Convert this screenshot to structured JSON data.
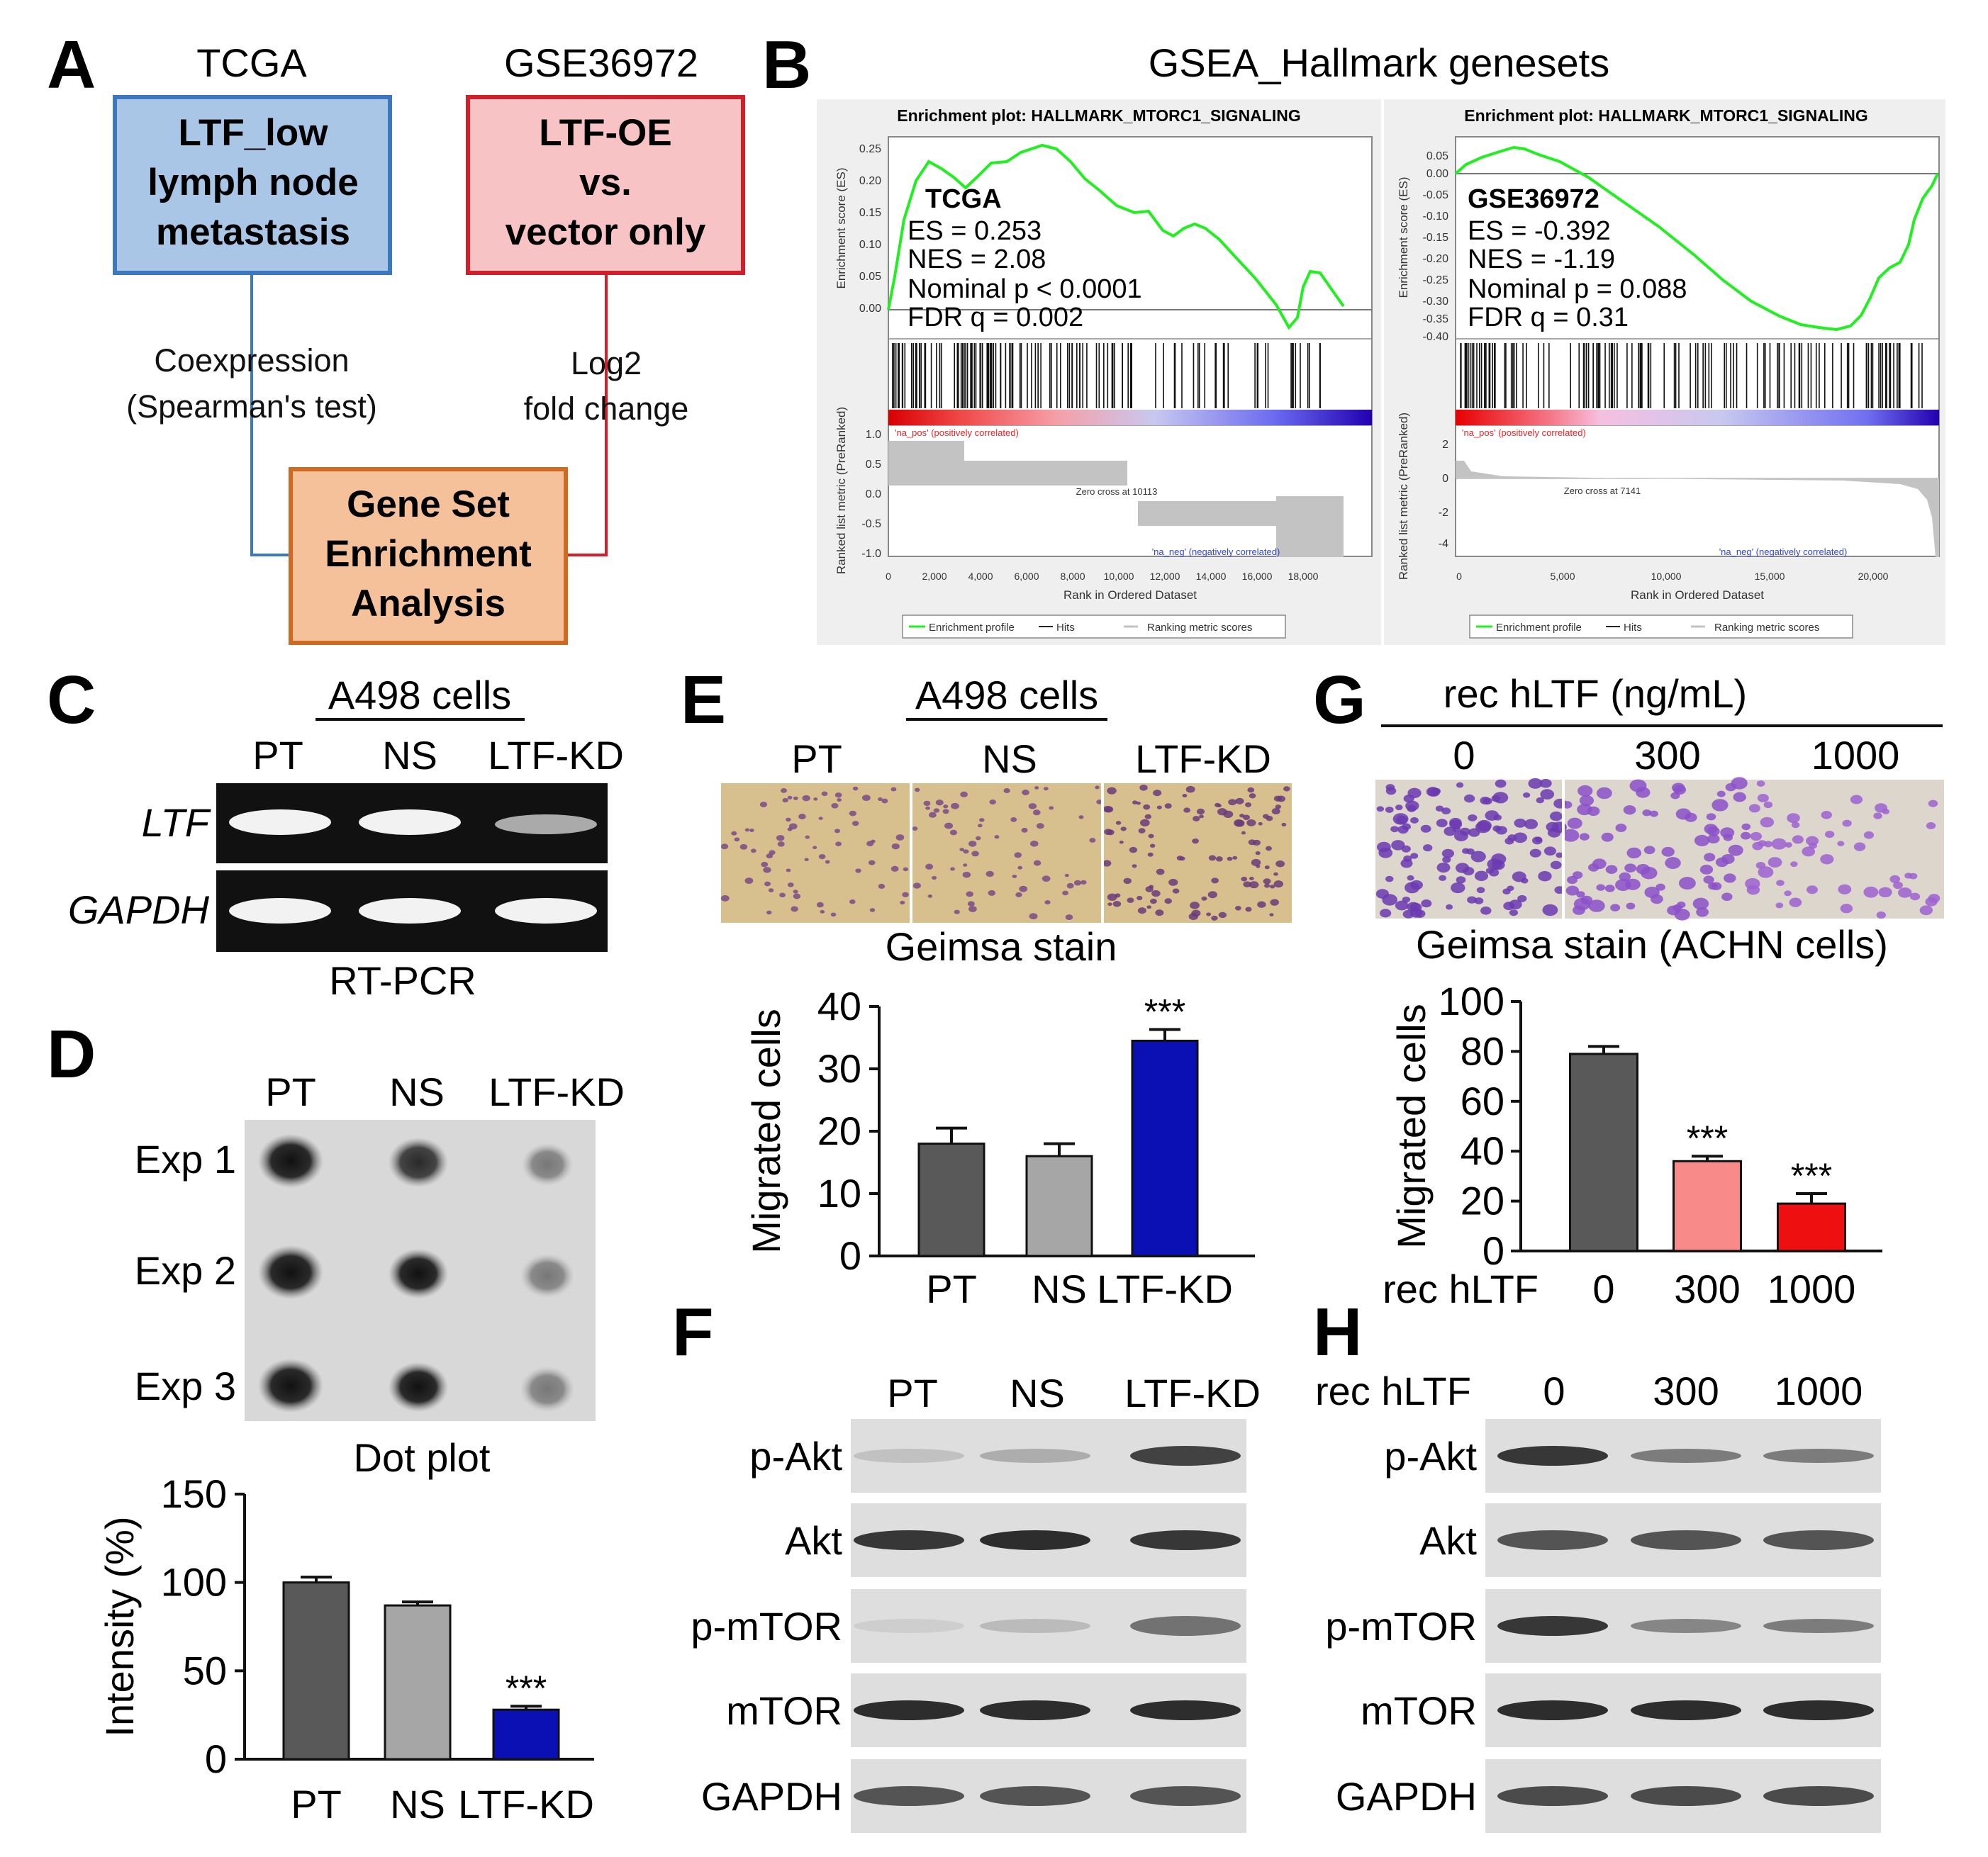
{
  "panels": {
    "A": {
      "letter": "A",
      "tcga_title": "TCGA",
      "gse_title": "GSE36972",
      "box1": [
        "LTF_low",
        "lymph node",
        "metastasis"
      ],
      "box2": [
        "LTF-OE",
        "vs.",
        "vector only"
      ],
      "box3": [
        "Gene Set",
        "Enrichment",
        "Analysis"
      ],
      "coexp": [
        "Coexpression",
        "(Spearman's test)"
      ],
      "log2": [
        "Log2",
        "fold change"
      ],
      "colors": {
        "blue_fill": "#a9c6e6",
        "blue_edge": "#3b78c0",
        "red_fill": "#f7c3c4",
        "red_edge": "#d0202a",
        "orange_fill": "#f4c19b",
        "orange_edge": "#cf6a22"
      }
    },
    "B": {
      "letter": "B",
      "title": "GSEA_Hallmark genesets",
      "plots": [
        {
          "header": "Enrichment plot: HALLMARK_MTORC1_SIGNALING",
          "dataset": "TCGA",
          "stats": [
            "ES = 0.253",
            "NES = 2.08",
            "Nominal p < 0.0001",
            "FDR q = 0.002"
          ],
          "es_yticks": [
            "0.25",
            "0.20",
            "0.15",
            "0.10",
            "0.05",
            "0.00"
          ],
          "metric_yticks": [
            "1.0",
            "0.5",
            "0.0",
            "-0.5",
            "-1.0"
          ],
          "xticks": [
            "0",
            "2,000",
            "4,000",
            "6,000",
            "8,000",
            "10,000",
            "12,000",
            "14,000",
            "16,000",
            "18,000"
          ],
          "pos_label": "'na_pos' (positively correlated)",
          "neg_label": "'na_neg' (negatively correlated)",
          "zero_cross": "Zero cross at 10113",
          "legend": [
            "Enrichment profile",
            "Hits",
            "Ranking metric scores"
          ]
        },
        {
          "header": "Enrichment plot: HALLMARK_MTORC1_SIGNALING",
          "dataset": "GSE36972",
          "stats": [
            "ES = -0.392",
            "NES = -1.19",
            "Nominal p = 0.088",
            "FDR q = 0.31"
          ],
          "es_yticks": [
            "0.05",
            "0.00",
            "-0.05",
            "-0.10",
            "-0.15",
            "-0.20",
            "-0.25",
            "-0.30",
            "-0.35",
            "-0.40"
          ],
          "metric_yticks": [
            "2",
            "0",
            "-2",
            "-4"
          ],
          "xticks": [
            "0",
            "5,000",
            "10,000",
            "15,000",
            "20,000"
          ],
          "pos_label": "'na_pos' (positively correlated)",
          "neg_label": "'na_neg' (negatively correlated)",
          "zero_cross": "Zero cross at 7141",
          "legend": [
            "Enrichment profile",
            "Hits",
            "Ranking metric scores"
          ]
        }
      ],
      "es_ylabel": "Enrichment score (ES)",
      "metric_ylabel": "Ranked list metric (PreRanked)",
      "xlabel": "Rank in Ordered Dataset"
    },
    "C": {
      "letter": "C",
      "title": "A498 cells",
      "lanes": [
        "PT",
        "NS",
        "LTF-KD"
      ],
      "rows": [
        "LTF",
        "GAPDH"
      ],
      "caption": "RT-PCR"
    },
    "D": {
      "letter": "D",
      "lanes": [
        "PT",
        "NS",
        "LTF-KD"
      ],
      "rows": [
        "Exp 1",
        "Exp 2",
        "Exp 3"
      ],
      "caption": "Dot plot",
      "significance": "***"
    },
    "E": {
      "letter": "E",
      "title": "A498 cells",
      "lanes": [
        "PT",
        "NS",
        "LTF-KD"
      ],
      "caption": "Geimsa stain",
      "significance": "***"
    },
    "F": {
      "letter": "F",
      "lanes": [
        "PT",
        "NS",
        "LTF-KD"
      ],
      "rows": [
        "p-Akt",
        "Akt",
        "p-mTOR",
        "mTOR",
        "GAPDH"
      ]
    },
    "G": {
      "letter": "G",
      "title": "rec hLTF (ng/mL)",
      "lanes": [
        "0",
        "300",
        "1000"
      ],
      "caption": "Geimsa stain (ACHN cells)",
      "significance": "***",
      "x_prefix": "rec hLTF"
    },
    "H": {
      "letter": "H",
      "prefix": "rec hLTF",
      "lanes": [
        "0",
        "300",
        "1000"
      ],
      "rows": [
        "p-Akt",
        "Akt",
        "p-mTOR",
        "mTOR",
        "GAPDH"
      ]
    }
  },
  "chart_data": [
    {
      "id": "D",
      "type": "bar",
      "categories": [
        "PT",
        "NS",
        "LTF-KD"
      ],
      "values": [
        100,
        87,
        28
      ],
      "errors": [
        3,
        2,
        2
      ],
      "ylabel": "Intensity (%)",
      "ylim": [
        0,
        150
      ],
      "yticks": [
        0,
        50,
        100,
        150
      ],
      "colors": [
        "#595959",
        "#a6a6a6",
        "#0a10b4"
      ]
    },
    {
      "id": "E",
      "type": "bar",
      "categories": [
        "PT",
        "NS",
        "LTF-KD"
      ],
      "values": [
        18,
        16,
        34.5
      ],
      "errors": [
        2.5,
        2,
        1.8
      ],
      "ylabel": "Migrated cells",
      "ylim": [
        0,
        40
      ],
      "yticks": [
        0,
        10,
        20,
        30,
        40
      ],
      "colors": [
        "#595959",
        "#a6a6a6",
        "#0a10b4"
      ]
    },
    {
      "id": "G",
      "type": "bar",
      "categories": [
        "0",
        "300",
        "1000"
      ],
      "values": [
        79,
        36,
        19
      ],
      "errors": [
        3,
        2,
        4
      ],
      "ylabel": "Migrated cells",
      "ylim": [
        0,
        100
      ],
      "yticks": [
        0,
        20,
        40,
        60,
        80,
        100
      ],
      "colors": [
        "#595959",
        "#f98a8a",
        "#ee1010"
      ]
    }
  ]
}
